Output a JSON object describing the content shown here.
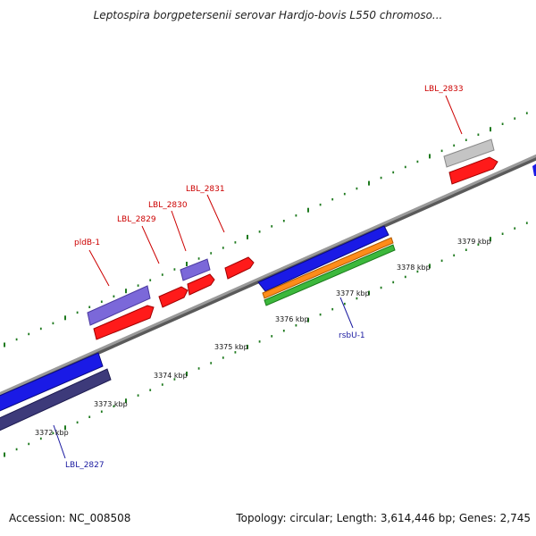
{
  "title": "Leptospira borgpetersenii serovar Hardjo-bovis L550 chromoso...",
  "footer": {
    "accession": "Accession: NC_008508",
    "topology": "Topology: circular; Length: 3,614,446 bp; Genes: 2,745"
  },
  "tick_labels": [
    "3372 kbp",
    "3373 kbp",
    "3374 kbp",
    "3375 kbp",
    "3376 kbp",
    "3377 kbp",
    "3378 kbp",
    "3379 kbp"
  ],
  "gene_labels": {
    "pldB": "pldB-1",
    "lbl2829": "LBL_2829",
    "lbl2830": "LBL_2830",
    "lbl2831": "LBL_2831",
    "lbl2833": "LBL_2833",
    "rsbU": "rsbU-1",
    "lbl2827": "LBL_2827"
  },
  "colors": {
    "backbone": "#8a8a8a",
    "tick": "#1f7a1f",
    "forward_cds": "#ff1a1a",
    "forward_label": "#cc0000",
    "reverse_cds": "#1a1ae6",
    "reverse_label": "#1a1aa0",
    "feature_purple": "#7b68d9",
    "feature_grey": "#b8b8b8",
    "feature_navy": "#3d3a7a",
    "feature_orange": "#ff8c1a",
    "feature_green": "#3cb83c"
  }
}
